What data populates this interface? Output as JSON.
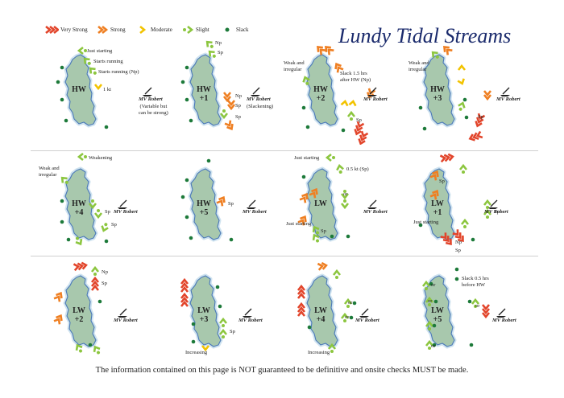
{
  "title": "Lundy Tidal Streams",
  "legend": [
    {
      "label": "Very Strong",
      "color": "#e2452b",
      "icon": "triple-chevron"
    },
    {
      "label": "Strong",
      "color": "#ef7f22",
      "icon": "double-chevron"
    },
    {
      "label": "Moderate",
      "color": "#f2c300",
      "icon": "single-chevron"
    },
    {
      "label": "Slight",
      "color": "#8cc63f",
      "icon": "chevron-with-dot"
    },
    {
      "label": "Slack",
      "color": "#1d7a3a",
      "icon": "dot"
    }
  ],
  "footer": "The information contained on this page is NOT guaranteed to be definitive and onsite checks MUST be made.",
  "vessel_name": "MV Robert",
  "panels": [
    {
      "id": "hw",
      "label_top": "HW",
      "label_bottom": "",
      "boat_note": "(Variable but\ncan be strong)",
      "notes": [
        "Just starting",
        "Starts running",
        "Starts running (Np)",
        "1 kt"
      ]
    },
    {
      "id": "hw1",
      "label_top": "HW",
      "label_bottom": "+1",
      "boat_note": "(Slackening)",
      "notes": [
        "Np",
        "Sp",
        "Np",
        "Sp",
        "Sp"
      ]
    },
    {
      "id": "hw2",
      "label_top": "HW",
      "label_bottom": "+2",
      "boat_note": "",
      "notes": [
        "Weak and\nirregular",
        "Slack 1.5 hrs\nafter HW (Np)",
        "Sp"
      ]
    },
    {
      "id": "hw3",
      "label_top": "HW",
      "label_bottom": "+3",
      "boat_note": "",
      "notes": [
        "Weak and\nirregular",
        "Sp"
      ]
    },
    {
      "id": "hw4",
      "label_top": "HW",
      "label_bottom": "+4",
      "boat_note": "",
      "notes": [
        "Weakening",
        "Weak and\nirregular",
        "Sp",
        "Sp"
      ]
    },
    {
      "id": "hw5",
      "label_top": "HW",
      "label_bottom": "+5",
      "boat_note": "",
      "notes": [
        "Sp"
      ]
    },
    {
      "id": "lw",
      "label_top": "LW",
      "label_bottom": "",
      "boat_note": "",
      "notes": [
        "Just starting",
        "0.5 kt (Sp)",
        "or",
        "Just starting",
        "Sp"
      ]
    },
    {
      "id": "lw1",
      "label_top": "LW",
      "label_bottom": "+1",
      "boat_note": "",
      "notes": [
        "Sp",
        "Sp",
        "Just starting",
        "Np",
        "Sp"
      ]
    },
    {
      "id": "lw2",
      "label_top": "LW",
      "label_bottom": "+2",
      "boat_note": "",
      "notes": [
        "Np",
        "Sp"
      ]
    },
    {
      "id": "lw3",
      "label_top": "LW",
      "label_bottom": "+3",
      "boat_note": "",
      "notes": [
        "Sp",
        "Increasing"
      ]
    },
    {
      "id": "lw4",
      "label_top": "LW",
      "label_bottom": "+4",
      "boat_note": "",
      "notes": [
        "or",
        "or",
        "Increasing"
      ]
    },
    {
      "id": "lw5",
      "label_top": "LW",
      "label_bottom": "+5",
      "boat_note": "",
      "notes": [
        "Slack 0.5 hrs\nbefore HW",
        "or",
        "or",
        "or",
        "or"
      ]
    }
  ]
}
